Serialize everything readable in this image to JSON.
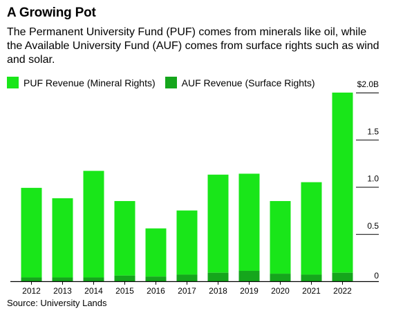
{
  "title": "A Growing Pot",
  "subtitle": "The Permanent University Fund (PUF) comes from minerals like oil, while the Available University Fund (AUF) comes from surface rights such as wind and solar.",
  "source": "Source: University Lands",
  "colors": {
    "puf": "#19e619",
    "auf": "#15a61c",
    "axis": "#000000",
    "grid": "#000000"
  },
  "chart_data": {
    "type": "bar",
    "stacked": true,
    "categories": [
      "2012",
      "2013",
      "2014",
      "2015",
      "2016",
      "2017",
      "2018",
      "2019",
      "2020",
      "2021",
      "2022"
    ],
    "series": [
      {
        "name": "AUF Revenue (Surface Rights)",
        "values": [
          0.04,
          0.04,
          0.04,
          0.06,
          0.05,
          0.07,
          0.09,
          0.11,
          0.08,
          0.07,
          0.09
        ]
      },
      {
        "name": "PUF Revenue (Mineral Rights)",
        "values": [
          0.95,
          0.84,
          1.13,
          0.79,
          0.51,
          0.68,
          1.04,
          1.03,
          0.77,
          0.98,
          1.91
        ]
      }
    ],
    "y_ticks": [
      {
        "value": 0,
        "label": "0"
      },
      {
        "value": 0.5,
        "label": "0.5"
      },
      {
        "value": 1.0,
        "label": "1.0"
      },
      {
        "value": 1.5,
        "label": "1.5"
      },
      {
        "value": 2.0,
        "label": "$2.0B"
      }
    ],
    "ylim": [
      0,
      2.0
    ],
    "y_axis_side": "right",
    "legend_position": "top-left"
  }
}
